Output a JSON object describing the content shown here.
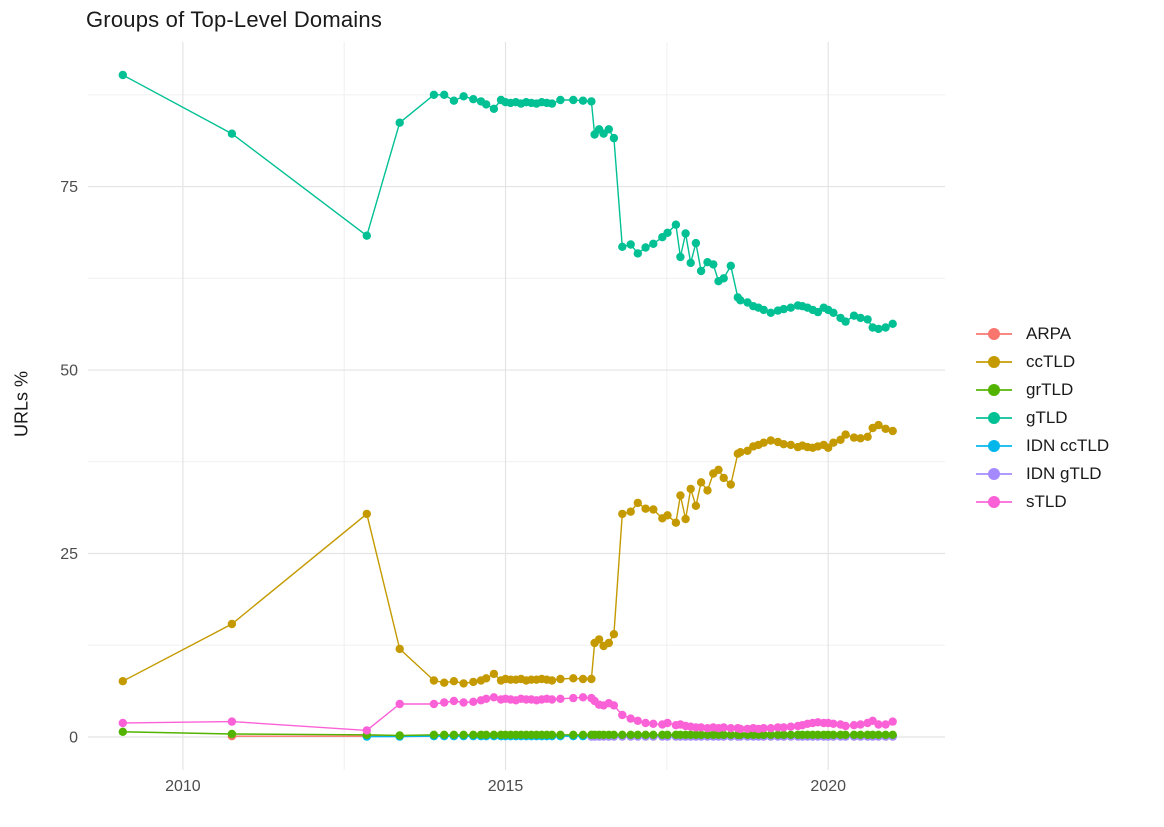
{
  "page": {
    "background": "#ffffff"
  },
  "chart_data": {
    "type": "line",
    "title": "Groups of Top-Level Domains",
    "xlabel": "",
    "ylabel": "URLs %",
    "x_ticks": [
      2010,
      2015,
      2020
    ],
    "x_minor_ticks": [
      2012.5,
      2017.5
    ],
    "y_ticks": [
      0,
      25,
      50,
      75
    ],
    "y_minor_ticks": [
      12.5,
      37.5,
      62.5,
      87.5
    ],
    "xlim": [
      2008.53,
      2021.81
    ],
    "ylim": [
      -4.5,
      94.7
    ],
    "grid": true,
    "legend_position": "right",
    "colors": {
      "major_grid": "#e4e4e4",
      "minor_grid": "#f0f0f0",
      "axis_text": "#4d4d4d",
      "title_text": "#1a1a1a"
    },
    "x_dense": [
      2013.89,
      2014.05,
      2014.2,
      2014.35,
      2014.5,
      2014.62,
      2014.7,
      2014.82,
      2014.93,
      2015.0,
      2015.08,
      2015.16,
      2015.24,
      2015.32,
      2015.4,
      2015.48,
      2015.56,
      2015.64,
      2015.72,
      2015.85,
      2016.05,
      2016.2,
      2016.33,
      2016.38,
      2016.45,
      2016.52,
      2016.6,
      2016.68,
      2016.81,
      2016.94,
      2017.05,
      2017.17,
      2017.29,
      2017.43,
      2017.51,
      2017.64,
      2017.71,
      2017.79,
      2017.87,
      2017.95,
      2018.03,
      2018.13,
      2018.22,
      2018.3,
      2018.38,
      2018.49,
      2018.6,
      2018.64,
      2018.75,
      2018.84,
      2018.92,
      2019.0,
      2019.11,
      2019.22,
      2019.31,
      2019.42,
      2019.53,
      2019.6,
      2019.68,
      2019.76,
      2019.84,
      2019.93,
      2020.0,
      2020.08,
      2020.19,
      2020.27,
      2020.4,
      2020.5,
      2020.61,
      2020.69,
      2020.78,
      2020.89,
      2021.0
    ],
    "series": [
      {
        "name": "ARPA",
        "color": "#F8766D",
        "z": 0,
        "early": [
          [
            2010.76,
            0.1
          ],
          [
            2012.85,
            0.1
          ],
          [
            2013.36,
            0.1
          ]
        ],
        "y_dense": [
          0.2,
          0.2,
          0.2,
          0.2,
          0.2,
          0.2,
          0.2,
          0.2,
          0.2,
          0.2,
          0.2,
          0.2,
          0.2,
          0.2,
          0.2,
          0.2,
          0.2,
          0.2,
          0.2,
          0.2,
          0.2,
          0.2,
          0.2,
          0.2,
          0.2,
          0.2,
          0.2,
          0.2,
          0.2,
          0.2,
          0.2,
          0.2,
          0.2,
          0.2,
          0.2,
          0.2,
          0.2,
          0.2,
          0.2,
          0.2,
          0.2,
          0.2,
          0.2,
          0.2,
          0.2,
          0.2,
          0.2,
          0.2,
          0.2,
          0.2,
          0.2,
          0.2,
          0.2,
          0.2,
          0.2,
          0.2,
          0.2,
          0.2,
          0.2,
          0.2,
          0.2,
          0.2,
          0.2,
          0.2,
          0.2,
          0.2,
          0.2,
          0.2,
          0.2,
          0.2,
          0.2,
          0.2,
          0.2
        ]
      },
      {
        "name": "ccTLD",
        "color": "#C49A00",
        "z": 5,
        "early": [
          [
            2009.07,
            7.6
          ],
          [
            2010.76,
            15.4
          ],
          [
            2012.85,
            30.4
          ],
          [
            2013.36,
            12.0
          ]
        ],
        "y_dense": [
          7.7,
          7.4,
          7.6,
          7.3,
          7.5,
          7.7,
          8.0,
          8.6,
          7.7,
          7.9,
          7.8,
          7.8,
          7.9,
          7.7,
          7.8,
          7.8,
          7.9,
          7.8,
          7.7,
          7.9,
          8.0,
          7.9,
          7.9,
          12.8,
          13.3,
          12.4,
          12.8,
          14.0,
          30.4,
          30.7,
          31.9,
          31.1,
          31.0,
          29.8,
          30.2,
          29.2,
          32.9,
          29.7,
          33.8,
          31.5,
          34.7,
          33.6,
          35.9,
          36.4,
          35.3,
          34.4,
          38.6,
          38.8,
          39.0,
          39.6,
          39.8,
          40.1,
          40.4,
          40.2,
          39.9,
          39.8,
          39.5,
          39.7,
          39.5,
          39.4,
          39.6,
          39.8,
          39.4,
          40.1,
          40.5,
          41.2,
          40.8,
          40.7,
          40.9,
          42.1,
          42.5,
          42.0,
          41.7
        ]
      },
      {
        "name": "grTLD",
        "color": "#53B400",
        "z": 3,
        "early": [
          [
            2009.07,
            0.7
          ],
          [
            2010.76,
            0.4
          ],
          [
            2012.85,
            0.3
          ],
          [
            2013.36,
            0.2
          ]
        ],
        "y_dense": [
          0.3,
          0.3,
          0.3,
          0.3,
          0.3,
          0.3,
          0.3,
          0.3,
          0.3,
          0.3,
          0.3,
          0.3,
          0.3,
          0.3,
          0.3,
          0.3,
          0.3,
          0.3,
          0.3,
          0.3,
          0.3,
          0.3,
          0.3,
          0.3,
          0.3,
          0.3,
          0.3,
          0.3,
          0.3,
          0.3,
          0.3,
          0.3,
          0.3,
          0.3,
          0.3,
          0.3,
          0.3,
          0.3,
          0.3,
          0.3,
          0.3,
          0.3,
          0.3,
          0.3,
          0.3,
          0.3,
          0.3,
          0.3,
          0.3,
          0.3,
          0.3,
          0.3,
          0.3,
          0.3,
          0.3,
          0.3,
          0.3,
          0.3,
          0.3,
          0.3,
          0.3,
          0.3,
          0.3,
          0.3,
          0.3,
          0.3,
          0.3,
          0.3,
          0.3,
          0.3,
          0.3,
          0.3,
          0.3
        ]
      },
      {
        "name": "gTLD",
        "color": "#00C094",
        "z": 6,
        "early": [
          [
            2009.07,
            90.2
          ],
          [
            2010.76,
            82.2
          ],
          [
            2012.85,
            68.3
          ],
          [
            2013.36,
            83.7
          ]
        ],
        "y_dense": [
          87.5,
          87.5,
          86.7,
          87.3,
          86.9,
          86.6,
          86.2,
          85.6,
          86.8,
          86.5,
          86.4,
          86.5,
          86.3,
          86.5,
          86.4,
          86.3,
          86.5,
          86.4,
          86.3,
          86.8,
          86.8,
          86.7,
          86.6,
          82.1,
          82.8,
          82.2,
          82.8,
          81.6,
          66.8,
          67.1,
          65.9,
          66.7,
          67.2,
          68.1,
          68.7,
          69.8,
          65.4,
          68.6,
          64.6,
          67.3,
          63.5,
          64.7,
          64.4,
          62.1,
          62.5,
          64.2,
          59.9,
          59.5,
          59.2,
          58.7,
          58.5,
          58.2,
          57.8,
          58.1,
          58.3,
          58.5,
          58.8,
          58.7,
          58.5,
          58.2,
          57.9,
          58.5,
          58.2,
          57.8,
          57.1,
          56.6,
          57.4,
          57.1,
          56.9,
          55.8,
          55.6,
          55.8,
          56.3
        ]
      },
      {
        "name": "IDN ccTLD",
        "color": "#00B6EB",
        "z": 1,
        "early": [
          [
            2012.85,
            0.05
          ],
          [
            2013.36,
            0.05
          ]
        ],
        "y_dense": [
          0.1,
          0.1,
          0.1,
          0.1,
          0.1,
          0.1,
          0.1,
          0.1,
          0.1,
          0.1,
          0.1,
          0.1,
          0.1,
          0.1,
          0.1,
          0.1,
          0.1,
          0.1,
          0.1,
          0.1,
          0.1,
          0.1,
          0.1,
          0.1,
          0.1,
          0.1,
          0.1,
          0.1,
          0.1,
          0.1,
          0.1,
          0.1,
          0.1,
          0.1,
          0.1,
          0.1,
          0.1,
          0.1,
          0.1,
          0.1,
          0.1,
          0.1,
          0.1,
          0.1,
          0.1,
          0.1,
          0.1,
          0.1,
          0.1,
          0.1,
          0.1,
          0.1,
          0.1,
          0.1,
          0.1,
          0.1,
          0.1,
          0.1,
          0.1,
          0.1,
          0.1,
          0.1,
          0.1,
          0.1,
          0.1,
          0.1,
          0.1,
          0.1,
          0.1,
          0.1,
          0.1,
          0.1,
          0.1
        ]
      },
      {
        "name": "IDN gTLD",
        "color": "#A58AFF",
        "z": 2,
        "early": [],
        "y_dense": [
          null,
          null,
          null,
          null,
          null,
          null,
          null,
          null,
          null,
          null,
          null,
          null,
          null,
          null,
          null,
          null,
          null,
          null,
          null,
          null,
          null,
          null,
          0.05,
          0.05,
          0.05,
          0.05,
          0.05,
          0.05,
          0.05,
          0.05,
          0.05,
          0.05,
          0.05,
          0.05,
          0.05,
          0.05,
          0.05,
          0.05,
          0.05,
          0.05,
          0.05,
          0.05,
          0.05,
          0.05,
          0.05,
          0.05,
          0.05,
          0.05,
          0.05,
          0.05,
          0.05,
          0.05,
          0.05,
          0.05,
          0.05,
          0.05,
          0.05,
          0.05,
          0.05,
          0.05,
          0.05,
          0.05,
          0.05,
          0.05,
          0.05,
          0.05,
          0.05,
          0.05,
          0.05,
          0.05,
          0.05,
          0.05,
          0.05
        ]
      },
      {
        "name": "sTLD",
        "color": "#FB61D7",
        "z": 4,
        "early": [
          [
            2009.07,
            1.9
          ],
          [
            2010.76,
            2.1
          ],
          [
            2012.85,
            0.9
          ],
          [
            2013.36,
            4.5
          ]
        ],
        "y_dense": [
          4.5,
          4.7,
          4.9,
          4.7,
          4.8,
          5.0,
          5.2,
          5.4,
          5.1,
          5.2,
          5.1,
          5.0,
          5.2,
          5.1,
          5.1,
          5.0,
          5.1,
          5.2,
          5.1,
          5.2,
          5.3,
          5.4,
          5.3,
          4.9,
          4.4,
          4.3,
          4.6,
          4.3,
          3.0,
          2.5,
          2.2,
          1.9,
          1.8,
          1.7,
          1.9,
          1.6,
          1.7,
          1.5,
          1.4,
          1.3,
          1.3,
          1.2,
          1.3,
          1.2,
          1.3,
          1.2,
          1.2,
          1.1,
          1.1,
          1.2,
          1.1,
          1.2,
          1.2,
          1.3,
          1.3,
          1.4,
          1.5,
          1.6,
          1.8,
          1.9,
          2.0,
          1.9,
          1.9,
          1.8,
          1.7,
          1.5,
          1.6,
          1.7,
          1.9,
          2.2,
          1.7,
          1.7,
          2.1
        ]
      }
    ]
  }
}
